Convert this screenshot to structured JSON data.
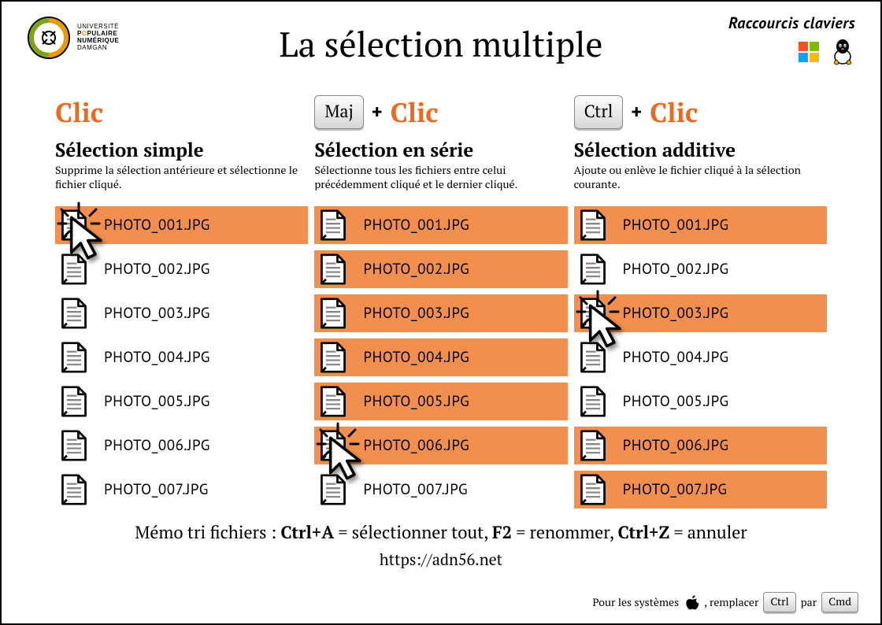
{
  "header": {
    "corner_tag": "Raccourcis  claviers",
    "title": "La sélection multiple",
    "logo_lines": [
      "UNIVERSITÉ",
      "POPULAIRE",
      "NUMÉRIQUE",
      "DAMGAN"
    ]
  },
  "colors": {
    "accent": "#ea6a20",
    "selection_bg": "#f28f4e",
    "text": "#000000",
    "key_border": "#888888"
  },
  "clic_label": "Clic",
  "plus_label": "+",
  "columns": [
    {
      "key": null,
      "subtitle": "Sélection simple",
      "desc": "Supprime la sélection antérieure et sélectionne le fichier cliqué.",
      "cursor_on_index": 0
    },
    {
      "key": "Maj",
      "subtitle": "Sélection en série",
      "desc": "Sélectionne tous les fichiers entre celui précédemment cliqué et le dernier cliqué.",
      "cursor_on_index": 5
    },
    {
      "key": "Ctrl",
      "subtitle": "Sélection additive",
      "desc": "Ajoute ou enlève le fichier cliqué à la sélection courante.",
      "cursor_on_index": 2
    }
  ],
  "files": [
    "PHOTO_001.JPG",
    "PHOTO_002.JPG",
    "PHOTO_003.JPG",
    "PHOTO_004.JPG",
    "PHOTO_005.JPG",
    "PHOTO_006.JPG",
    "PHOTO_007.JPG"
  ],
  "selection": [
    [
      true,
      false,
      false,
      false,
      false,
      false,
      false
    ],
    [
      true,
      true,
      true,
      true,
      true,
      true,
      false
    ],
    [
      true,
      false,
      true,
      false,
      false,
      true,
      true
    ]
  ],
  "memo": {
    "prefix": "Mémo tri fichiers : ",
    "parts": [
      {
        "bold": "Ctrl+A",
        "text": " = sélectionner tout, "
      },
      {
        "bold": "F2",
        "text": " = renommer, "
      },
      {
        "bold": "Ctrl+Z",
        "text": " = annuler"
      }
    ]
  },
  "url": "https://adn56.net",
  "footer": {
    "prefix": "Pour les systèmes ",
    "mid": " , remplacer ",
    "key_from": "Ctrl",
    "sep": " par ",
    "key_to": "Cmd"
  }
}
